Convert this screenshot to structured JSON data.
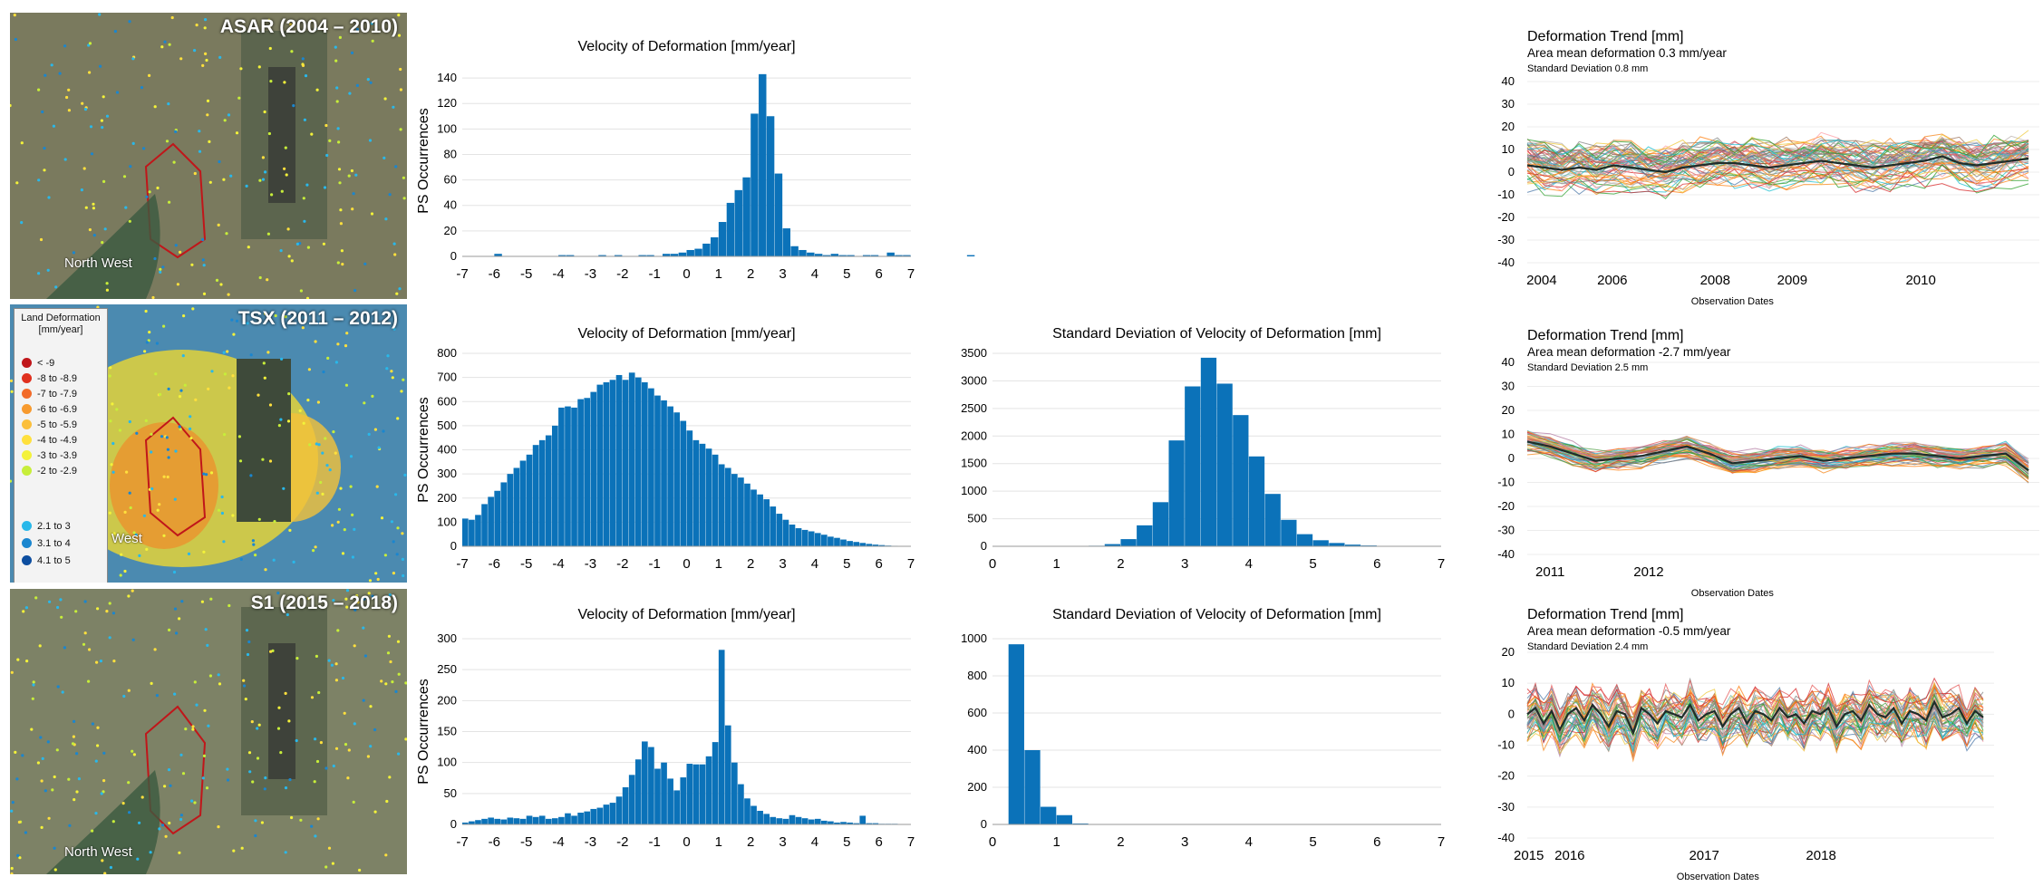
{
  "maps": [
    {
      "title": "ASAR (2004 – 2010)",
      "region_label": "North West"
    },
    {
      "title": "TSX (2011 – 2012)",
      "region_label": "West"
    },
    {
      "title": "S1 (2015 – 2018)",
      "region_label": "North West"
    }
  ],
  "legend": {
    "title": "Land Deformation [mm/year]",
    "items": [
      {
        "label": "< -9",
        "color": "#c0161a"
      },
      {
        "label": "-8 to -8.9",
        "color": "#e0301e"
      },
      {
        "label": "-7 to -7.9",
        "color": "#f26b2a"
      },
      {
        "label": "-6 to -6.9",
        "color": "#f79a2e"
      },
      {
        "label": "-5 to -5.9",
        "color": "#fbbf3b"
      },
      {
        "label": "-4 to -4.9",
        "color": "#ffe03d"
      },
      {
        "label": "-3 to -3.9",
        "color": "#f3f23a"
      },
      {
        "label": "-2 to -2.9",
        "color": "#c7ee3a"
      },
      {
        "label": "2.1 to 3",
        "color": "#29b8ea"
      },
      {
        "label": "3.1 to 4",
        "color": "#1a86cf"
      },
      {
        "label": "4.1 to 5",
        "color": "#0d4ea0"
      }
    ]
  },
  "chart_data": [
    {
      "id": "vel-asar",
      "type": "bar",
      "title": "Velocity of Deformation [mm/year]",
      "ylabel": "PS Occurrences",
      "xlabel": "",
      "bar_color": "#0b72b9",
      "xlim": [
        -7,
        7
      ],
      "ylim": [
        0,
        150
      ],
      "xticks": [
        -7,
        -6,
        -5,
        -4,
        -3,
        -2,
        -1,
        0,
        1,
        2,
        3,
        4,
        5,
        6,
        7
      ],
      "yticks": [
        0,
        20,
        40,
        60,
        80,
        100,
        120,
        140
      ],
      "bin_start": -6.25,
      "bin_width": 0.25,
      "values": [
        0,
        2,
        0,
        0,
        0,
        0,
        0,
        0,
        0,
        1,
        1,
        0,
        0,
        0,
        1,
        0,
        1,
        0,
        0,
        1,
        1,
        0,
        2,
        2,
        3,
        5,
        6,
        10,
        15,
        27,
        42,
        52,
        62,
        112,
        143,
        110,
        65,
        22,
        8,
        5,
        3,
        2,
        1,
        2,
        1,
        1,
        0,
        1,
        1,
        0,
        3,
        1,
        1,
        0,
        0,
        0,
        0,
        0,
        0,
        0,
        1,
        0,
        0
      ]
    },
    {
      "id": "vel-tsx",
      "type": "bar",
      "title": "Velocity of Deformation [mm/year]",
      "ylabel": "PS Occurrences",
      "xlabel": "",
      "bar_color": "#0b72b9",
      "xlim": [
        -7,
        7
      ],
      "ylim": [
        0,
        800
      ],
      "xticks": [
        -7,
        -6,
        -5,
        -4,
        -3,
        -2,
        -1,
        0,
        1,
        2,
        3,
        4,
        5,
        6,
        7
      ],
      "yticks": [
        0,
        100,
        200,
        300,
        400,
        500,
        600,
        700,
        800
      ],
      "bin_start": -7,
      "bin_width": 0.2,
      "values": [
        115,
        110,
        130,
        175,
        205,
        230,
        265,
        300,
        325,
        355,
        380,
        420,
        440,
        460,
        500,
        575,
        580,
        575,
        610,
        615,
        640,
        670,
        680,
        690,
        710,
        690,
        720,
        700,
        680,
        655,
        625,
        605,
        580,
        555,
        520,
        480,
        440,
        425,
        405,
        380,
        340,
        325,
        300,
        285,
        260,
        235,
        215,
        195,
        165,
        135,
        110,
        90,
        75,
        68,
        62,
        55,
        48,
        40,
        35,
        28,
        22,
        18,
        14,
        10,
        7,
        5,
        3,
        2,
        1,
        1
      ]
    },
    {
      "id": "std-tsx",
      "type": "bar",
      "title": "Standard Deviation of Velocity of Deformation [mm]",
      "ylabel": "",
      "xlabel": "",
      "bar_color": "#0b72b9",
      "xlim": [
        0,
        7
      ],
      "ylim": [
        0,
        3500
      ],
      "xticks": [
        0,
        1,
        2,
        3,
        4,
        5,
        6,
        7
      ],
      "yticks": [
        0,
        500,
        1000,
        1500,
        2000,
        2500,
        3000,
        3500
      ],
      "bin_start": 1.5,
      "bin_width": 0.25,
      "values": [
        10,
        40,
        130,
        380,
        800,
        1920,
        2900,
        3420,
        2950,
        2380,
        1630,
        950,
        480,
        220,
        110,
        60,
        30,
        15,
        8,
        5,
        3
      ]
    },
    {
      "id": "vel-s1",
      "type": "bar",
      "title": "Velocity of Deformation [mm/year]",
      "ylabel": "PS Occurrences",
      "xlabel": "",
      "bar_color": "#0b72b9",
      "xlim": [
        -7,
        7
      ],
      "ylim": [
        0,
        300
      ],
      "xticks": [
        -7,
        -6,
        -5,
        -4,
        -3,
        -2,
        -1,
        0,
        1,
        2,
        3,
        4,
        5,
        6,
        7
      ],
      "yticks": [
        0,
        50,
        100,
        150,
        200,
        250,
        300
      ],
      "bin_start": -7,
      "bin_width": 0.2,
      "values": [
        3,
        5,
        7,
        9,
        11,
        9,
        8,
        11,
        10,
        9,
        14,
        12,
        14,
        9,
        10,
        12,
        18,
        14,
        19,
        21,
        25,
        27,
        32,
        35,
        45,
        60,
        80,
        105,
        134,
        125,
        90,
        100,
        74,
        55,
        76,
        98,
        97,
        97,
        110,
        133,
        282,
        160,
        100,
        65,
        42,
        30,
        22,
        17,
        12,
        10,
        9,
        15,
        12,
        10,
        8,
        9,
        6,
        5,
        3,
        4,
        3,
        2,
        14,
        2,
        2,
        1,
        1,
        1,
        0,
        0
      ]
    },
    {
      "id": "std-s1",
      "type": "bar",
      "title": "Standard Deviation of Velocity of Deformation [mm]",
      "ylabel": "",
      "xlabel": "",
      "bar_color": "#0b72b9",
      "xlim": [
        0,
        7
      ],
      "ylim": [
        0,
        1000
      ],
      "xticks": [
        0,
        1,
        2,
        3,
        4,
        5,
        6,
        7
      ],
      "yticks": [
        0,
        200,
        400,
        600,
        800,
        1000
      ],
      "bin_start": 0.25,
      "bin_width": 0.25,
      "values": [
        970,
        400,
        95,
        50,
        5,
        2,
        1
      ]
    },
    {
      "id": "trend-asar",
      "type": "line",
      "title": "Deformation Trend [mm]",
      "subtitle": "Area mean deformation 0.3 mm/year",
      "subtitle2": "Standard Deviation 0.8 mm",
      "xlabel": "Observation Dates",
      "ylim": [
        -40,
        40
      ],
      "yticks": [
        40,
        30,
        20,
        10,
        0,
        -10,
        -20,
        -30,
        -40
      ],
      "xlim": [
        2003.9,
        2011.7
      ],
      "xticks": [
        2004,
        2006,
        2008,
        2009,
        2010
      ],
      "xtick_positions": [
        2004.1,
        2005.2,
        2006.8,
        2008.0,
        2010.0
      ],
      "mean": [
        3,
        2,
        1,
        2,
        1,
        3,
        2,
        1,
        0,
        2,
        3,
        4,
        4,
        3,
        2,
        3,
        4,
        5,
        4,
        3,
        2,
        3,
        4,
        5,
        7,
        4,
        3,
        4,
        5,
        6
      ],
      "spread": 12,
      "n_series": 60,
      "seed": 11
    },
    {
      "id": "trend-tsx",
      "type": "line",
      "title": "Deformation Trend [mm]",
      "subtitle": "Area mean deformation -2.7 mm/year",
      "subtitle2": "Standard Deviation 2.5 mm",
      "xlabel": "Observation Dates",
      "ylim": [
        -40,
        40
      ],
      "yticks": [
        40,
        30,
        20,
        10,
        0,
        -10,
        -20,
        -30,
        -40
      ],
      "xlim": [
        2010.9,
        2013.2
      ],
      "xticks": [
        2011,
        2012
      ],
      "xtick_positions": [
        2011.0,
        2011.45
      ],
      "mean": [
        7,
        5,
        2,
        -1,
        0,
        1,
        3,
        5,
        2,
        -2,
        -1,
        0,
        1,
        -1,
        0,
        1,
        2,
        2,
        1,
        0,
        1,
        2,
        -5
      ],
      "spread": 5,
      "n_series": 50,
      "seed": 23
    },
    {
      "id": "trend-s1",
      "type": "line",
      "title": "Deformation Trend [mm]",
      "subtitle": "Area mean deformation -0.5 mm/year",
      "subtitle2": "Standard Deviation 2.4 mm",
      "xlabel": "Observation Dates",
      "ylim": [
        -40,
        20
      ],
      "yticks": [
        20,
        10,
        0,
        -10,
        -20,
        -30,
        -40
      ],
      "xlim": [
        2015.0,
        2018.9
      ],
      "xticks": [
        2015,
        2016,
        2017,
        2018
      ],
      "xtick_positions": [
        2015.0,
        2015.35,
        2016.5,
        2017.5
      ],
      "mean": [
        0,
        2,
        -3,
        1,
        -5,
        0,
        2,
        -2,
        3,
        0,
        -4,
        1,
        0,
        -6,
        2,
        0,
        -3,
        1,
        0,
        -1,
        3,
        -2,
        0,
        1,
        -4,
        0,
        2,
        -3,
        1,
        0,
        -2,
        2,
        -1,
        0,
        -3,
        1,
        0,
        2,
        -4,
        0,
        1,
        -2,
        3,
        0,
        -1,
        2,
        -3,
        1,
        0,
        -2,
        4,
        -1,
        0,
        2,
        -3,
        1,
        -1
      ],
      "spread": 9,
      "n_series": 45,
      "seed": 37
    }
  ]
}
